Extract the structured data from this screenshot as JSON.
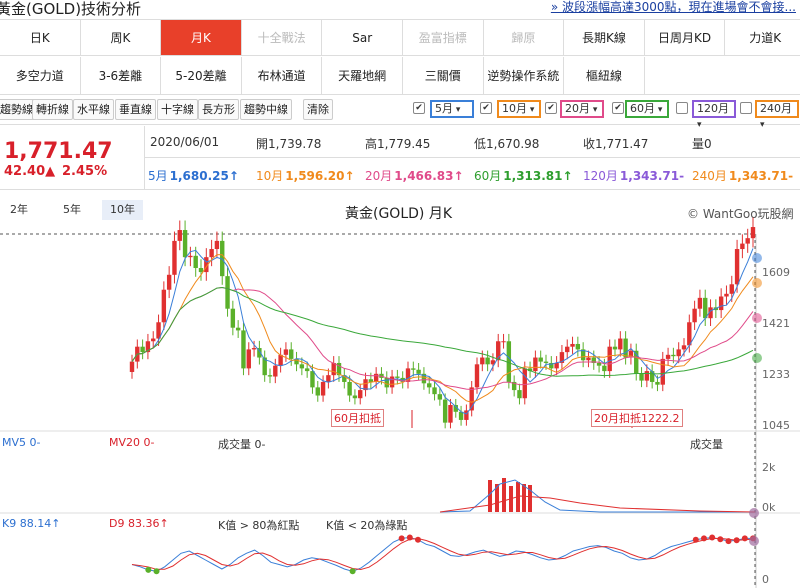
{
  "header": {
    "title": "黃金(GOLD)技術分析",
    "news": "» 波段漲幅高達3000點，現在進場會不會接..."
  },
  "tabs_row1": [
    {
      "label": "日K",
      "state": "normal"
    },
    {
      "label": "周K",
      "state": "normal"
    },
    {
      "label": "月K",
      "state": "active"
    },
    {
      "label": "十全戰法",
      "state": "disabled"
    },
    {
      "label": "Sar",
      "state": "normal"
    },
    {
      "label": "盈富指標",
      "state": "disabled"
    },
    {
      "label": "歸原",
      "state": "disabled"
    },
    {
      "label": "長期K線",
      "state": "normal"
    },
    {
      "label": "日周月KD",
      "state": "normal"
    },
    {
      "label": "力道K",
      "state": "normal"
    }
  ],
  "tabs_row2": [
    {
      "label": "多空力道"
    },
    {
      "label": "3-6差離"
    },
    {
      "label": "5-20差離"
    },
    {
      "label": "布林通道"
    },
    {
      "label": "天羅地網"
    },
    {
      "label": "三關價"
    },
    {
      "label": "逆勢操作系統"
    },
    {
      "label": "樞紐線"
    }
  ],
  "tools": [
    "趨勢線",
    "轉折線",
    "水平線",
    "垂直線",
    "十字線",
    "長方形",
    "趨勢中線",
    "清除"
  ],
  "ma_selects": [
    {
      "label": "5月",
      "checked": true,
      "color": "#3a7fd8"
    },
    {
      "label": "10月",
      "checked": true,
      "color": "#f08a1c"
    },
    {
      "label": "20月",
      "checked": true,
      "color": "#e04b8a"
    },
    {
      "label": "60月",
      "checked": true,
      "color": "#3aa83a"
    },
    {
      "label": "120月",
      "checked": false,
      "color": "#8a5ad8"
    },
    {
      "label": "240月",
      "checked": false,
      "color": "#f08a1c"
    }
  ],
  "quote": {
    "price": "1,771.47",
    "change": "42.40▲",
    "change_pct": "2.45%",
    "date": "2020/06/01",
    "open": "開1,739.78",
    "high": "高1,779.45",
    "low": "低1,670.98",
    "close": "收1,771.47",
    "volume": "量0",
    "mas": [
      {
        "name": "5月",
        "value": "1,680.25↑",
        "color": "#2c6fd0"
      },
      {
        "name": "10月",
        "value": "1,596.20↑",
        "color": "#f08a1c"
      },
      {
        "name": "20月",
        "value": "1,466.83↑",
        "color": "#e04b8a"
      },
      {
        "name": "60月",
        "value": "1,313.81↑",
        "color": "#2e9e2e"
      },
      {
        "name": "120月",
        "value": "1,343.71-",
        "color": "#8a5ad8"
      },
      {
        "name": "240月",
        "value": "1,343.71-",
        "color": "#f08a1c"
      }
    ]
  },
  "periods": [
    "2年",
    "5年",
    "10年"
  ],
  "chart": {
    "title": "黃金(GOLD) 月K",
    "copyright": "© WantGoo玩股網",
    "price_ticks": [
      "1609",
      "1421",
      "1233",
      "1045"
    ],
    "annotations": [
      "60月扣抵",
      "20月扣抵1222.2"
    ],
    "vol_labels": {
      "mv5": "MV5 0-",
      "mv20": "MV20 0-",
      "vol": "成交量 0-",
      "vol_right": "成交量"
    },
    "vol_ticks": [
      "2k",
      "0k"
    ],
    "kd_labels": {
      "k9": "K9 88.14↑",
      "d9": "D9 83.36↑",
      "hint1": "K值 > 80為紅點",
      "hint2": "K值 < 20為綠點"
    },
    "kd_ticks": [
      "0"
    ],
    "colors": {
      "up": "#e03030",
      "down": "#5ab02a",
      "ma5": "#3a7fd8",
      "ma10": "#f08a1c",
      "ma20": "#e04b8a",
      "ma60": "#3aa83a"
    }
  }
}
